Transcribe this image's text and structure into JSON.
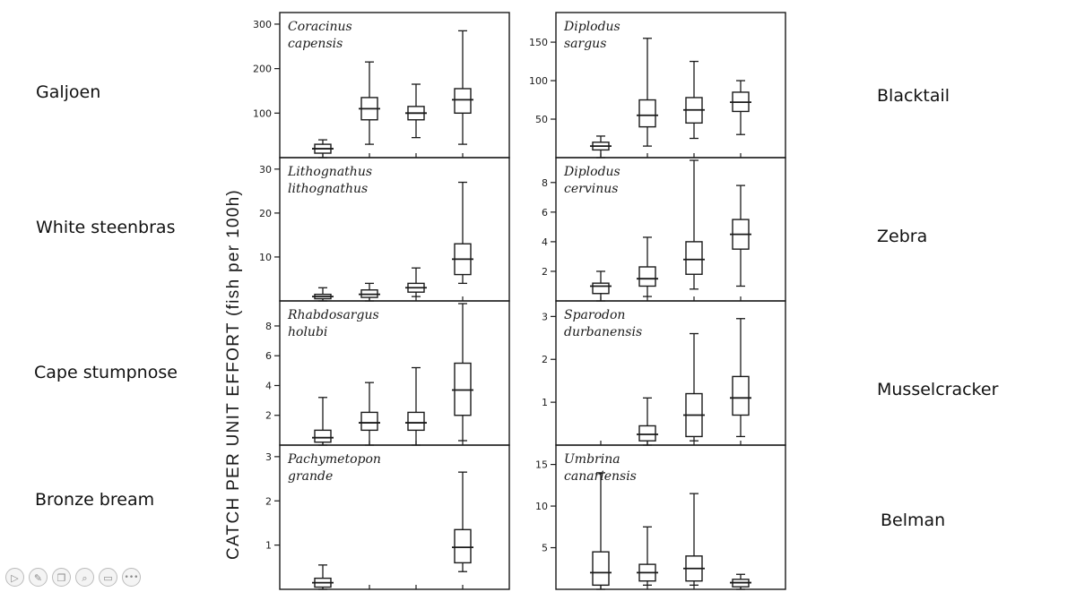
{
  "common_names": [
    {
      "label": "Galjoen"
    },
    {
      "label": "White steenbras"
    },
    {
      "label": "Cape stumpnose"
    },
    {
      "label": "Bronze bream"
    },
    {
      "label": "Blacktail"
    },
    {
      "label": "Zebra"
    },
    {
      "label": "Musselcracker"
    },
    {
      "label": "Belman"
    }
  ],
  "y_axis_label": "CATCH PER UNIT EFFORT (fish per 100h)",
  "toolbar": {
    "buttons": [
      {
        "name": "play-icon",
        "glyph": "▷"
      },
      {
        "name": "pen-icon",
        "glyph": "✎"
      },
      {
        "name": "copy-icon",
        "glyph": "❐"
      },
      {
        "name": "zoom-icon",
        "glyph": "⌕"
      },
      {
        "name": "screen-icon",
        "glyph": "▭"
      },
      {
        "name": "more-icon",
        "glyph": "•••"
      }
    ]
  },
  "colors": {
    "ink": "#1a1a1a",
    "background": "#ffffff",
    "label": "#111111"
  },
  "chart_data": [
    {
      "type": "box",
      "species": [
        "Coracinus",
        "capensis"
      ],
      "ylim": [
        0,
        320
      ],
      "ticks": [
        100,
        200,
        300
      ],
      "boxes": [
        {
          "min": 0,
          "q1": 10,
          "median": 20,
          "q3": 30,
          "max": 40
        },
        {
          "min": 30,
          "q1": 85,
          "median": 110,
          "q3": 135,
          "max": 215
        },
        {
          "min": 45,
          "q1": 85,
          "median": 100,
          "q3": 115,
          "max": 165
        },
        {
          "min": 30,
          "q1": 100,
          "median": 130,
          "q3": 155,
          "max": 285
        }
      ]
    },
    {
      "type": "box",
      "species": [
        "Lithognathus",
        "lithognathus"
      ],
      "ylim": [
        0,
        32
      ],
      "ticks": [
        10,
        20,
        30
      ],
      "boxes": [
        {
          "min": 0,
          "q1": 0.5,
          "median": 1,
          "q3": 1.5,
          "max": 3
        },
        {
          "min": 0,
          "q1": 0.8,
          "median": 1.5,
          "q3": 2.5,
          "max": 4
        },
        {
          "min": 1,
          "q1": 2,
          "median": 3,
          "q3": 4,
          "max": 7.5
        },
        {
          "min": 4,
          "q1": 6,
          "median": 9.5,
          "q3": 13,
          "max": 27
        }
      ]
    },
    {
      "type": "box",
      "species": [
        "Rhabdosargus",
        "holubi"
      ],
      "ylim": [
        0,
        9.5
      ],
      "ticks": [
        2,
        4,
        6,
        8
      ],
      "boxes": [
        {
          "min": 0,
          "q1": 0.2,
          "median": 0.5,
          "q3": 1,
          "max": 3.2
        },
        {
          "min": 0,
          "q1": 1,
          "median": 1.5,
          "q3": 2.2,
          "max": 4.2
        },
        {
          "min": 0,
          "q1": 1,
          "median": 1.5,
          "q3": 2.2,
          "max": 5.2
        },
        {
          "min": 0.3,
          "q1": 2,
          "median": 3.7,
          "q3": 5.5,
          "max": 9.5
        }
      ]
    },
    {
      "type": "box",
      "species": [
        "Pachymetopon",
        "grande"
      ],
      "ylim": [
        0,
        3.2
      ],
      "ticks": [
        1,
        2,
        3
      ],
      "boxes": [
        {
          "min": 0,
          "q1": 0.05,
          "median": 0.15,
          "q3": 0.25,
          "max": 0.55
        },
        null,
        null,
        {
          "min": 0.4,
          "q1": 0.6,
          "median": 0.95,
          "q3": 1.35,
          "max": 2.65
        }
      ]
    },
    {
      "type": "box",
      "species": [
        "Diplodus",
        "sargus"
      ],
      "ylim": [
        0,
        185
      ],
      "ticks": [
        50,
        100,
        150
      ],
      "boxes": [
        {
          "min": 0,
          "q1": 10,
          "median": 15,
          "q3": 20,
          "max": 28
        },
        {
          "min": 15,
          "q1": 40,
          "median": 55,
          "q3": 75,
          "max": 155
        },
        {
          "min": 25,
          "q1": 45,
          "median": 62,
          "q3": 78,
          "max": 125
        },
        {
          "min": 30,
          "q1": 60,
          "median": 72,
          "q3": 85,
          "max": 100
        }
      ]
    },
    {
      "type": "box",
      "species": [
        "Diplodus",
        "cervinus"
      ],
      "ylim": [
        0,
        9.5
      ],
      "ticks": [
        2,
        4,
        6,
        8
      ],
      "boxes": [
        {
          "min": 0,
          "q1": 0.5,
          "median": 1,
          "q3": 1.2,
          "max": 2
        },
        {
          "min": 0.3,
          "q1": 1,
          "median": 1.5,
          "q3": 2.3,
          "max": 4.3
        },
        {
          "min": 0.8,
          "q1": 1.8,
          "median": 2.8,
          "q3": 4,
          "max": 9.5
        },
        {
          "min": 1,
          "q1": 3.5,
          "median": 4.5,
          "q3": 5.5,
          "max": 7.8
        }
      ]
    },
    {
      "type": "box",
      "species": [
        "Sparodon",
        "durbanensis"
      ],
      "ylim": [
        0,
        3.3
      ],
      "ticks": [
        1,
        2,
        3
      ],
      "boxes": [
        null,
        {
          "min": 0,
          "q1": 0.1,
          "median": 0.25,
          "q3": 0.45,
          "max": 1.1
        },
        {
          "min": 0.1,
          "q1": 0.2,
          "median": 0.7,
          "q3": 1.2,
          "max": 2.6
        },
        {
          "min": 0.2,
          "q1": 0.7,
          "median": 1.1,
          "q3": 1.6,
          "max": 2.95
        }
      ]
    },
    {
      "type": "box",
      "species": [
        "Umbrina",
        "canariensis"
      ],
      "ylim": [
        0,
        17
      ],
      "ticks": [
        5,
        10,
        15
      ],
      "boxes": [
        {
          "min": 0,
          "q1": 0.5,
          "median": 2,
          "q3": 4.5,
          "max": 14
        },
        {
          "min": 0.5,
          "q1": 1,
          "median": 2,
          "q3": 3,
          "max": 7.5
        },
        {
          "min": 0.5,
          "q1": 1,
          "median": 2.5,
          "q3": 4,
          "max": 11.5
        },
        {
          "min": 0,
          "q1": 0.3,
          "median": 0.8,
          "q3": 1.2,
          "max": 1.8
        }
      ]
    }
  ]
}
